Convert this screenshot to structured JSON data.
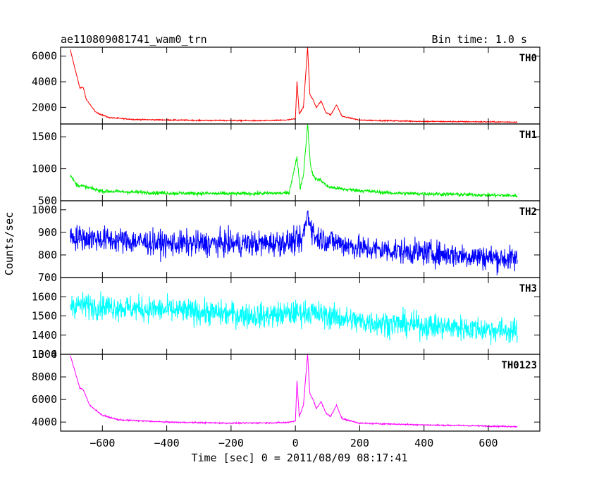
{
  "title_left": "ae110809081741_wam0_trn",
  "title_right": "Bin time: 1.0 s",
  "ylabel": "Counts/sec",
  "xlabel": "Time [sec] 0 = 2011/08/09 08:17:41",
  "chart_data": {
    "type": "line",
    "title": "ae110809081741_wam0_trn",
    "xlabel": "Time [sec] 0 = 2011/08/09 08:17:41",
    "ylabel": "Counts/sec",
    "xlim": [
      -730,
      760
    ],
    "x_ticks": [
      -600,
      -400,
      -200,
      0,
      200,
      400,
      600
    ],
    "x_range": [
      -700,
      690
    ],
    "panels": [
      {
        "name": "TH0",
        "color": "#ff0000",
        "ylim": [
          700,
          6700
        ],
        "y_ticks": [
          2000,
          4000,
          6000
        ],
        "y_tick_labels": [
          "2000",
          "4000",
          "6000"
        ],
        "noise": 45,
        "profile": [
          [
            -700,
            6500
          ],
          [
            -670,
            3500
          ],
          [
            -660,
            3600
          ],
          [
            -650,
            2600
          ],
          [
            -620,
            1600
          ],
          [
            -580,
            1200
          ],
          [
            -500,
            1050
          ],
          [
            -300,
            980
          ],
          [
            -100,
            950
          ],
          [
            -30,
            1000
          ],
          [
            0,
            1100
          ],
          [
            5,
            4000
          ],
          [
            12,
            1500
          ],
          [
            25,
            2000
          ],
          [
            38,
            6700
          ],
          [
            45,
            3000
          ],
          [
            55,
            2600
          ],
          [
            65,
            2000
          ],
          [
            80,
            2500
          ],
          [
            95,
            1600
          ],
          [
            110,
            1400
          ],
          [
            128,
            2200
          ],
          [
            145,
            1300
          ],
          [
            200,
            1000
          ],
          [
            400,
            900
          ],
          [
            690,
            850
          ]
        ]
      },
      {
        "name": "TH1",
        "color": "#00ee00",
        "ylim": [
          500,
          1700
        ],
        "y_ticks": [
          500,
          1000,
          1500
        ],
        "y_tick_labels": [
          "500",
          "1000",
          "1500"
        ],
        "noise": 30,
        "profile": [
          [
            -700,
            900
          ],
          [
            -680,
            750
          ],
          [
            -600,
            650
          ],
          [
            -400,
            620
          ],
          [
            -200,
            610
          ],
          [
            -20,
            620
          ],
          [
            5,
            1180
          ],
          [
            15,
            700
          ],
          [
            25,
            900
          ],
          [
            38,
            1700
          ],
          [
            48,
            1000
          ],
          [
            60,
            850
          ],
          [
            80,
            820
          ],
          [
            100,
            720
          ],
          [
            150,
            680
          ],
          [
            300,
            620
          ],
          [
            690,
            580
          ]
        ]
      },
      {
        "name": "TH2",
        "color": "#0000ff",
        "ylim": [
          700,
          1040
        ],
        "y_ticks": [
          700,
          800,
          900,
          1000
        ],
        "y_tick_labels": [
          "700",
          "800",
          "900",
          "1000"
        ],
        "noise": 55,
        "profile": [
          [
            -700,
            880
          ],
          [
            -400,
            850
          ],
          [
            -100,
            850
          ],
          [
            20,
            860
          ],
          [
            38,
            980
          ],
          [
            60,
            880
          ],
          [
            200,
            830
          ],
          [
            400,
            810
          ],
          [
            690,
            780
          ]
        ]
      },
      {
        "name": "TH3",
        "color": "#00ffff",
        "ylim": [
          1300,
          1700
        ],
        "y_ticks": [
          1300,
          1400,
          1500,
          1600
        ],
        "y_tick_labels": [
          "1300",
          "1400",
          "1500",
          "1600"
        ],
        "noise": 65,
        "profile": [
          [
            -700,
            1560
          ],
          [
            -400,
            1530
          ],
          [
            -100,
            1500
          ],
          [
            40,
            1520
          ],
          [
            200,
            1470
          ],
          [
            400,
            1450
          ],
          [
            690,
            1420
          ]
        ]
      },
      {
        "name": "TH0123",
        "color": "#ff00ff",
        "ylim": [
          3200,
          10000
        ],
        "y_ticks": [
          4000,
          6000,
          8000,
          10000
        ],
        "y_tick_labels": [
          "4000",
          "6000",
          "8000",
          "10^4"
        ],
        "noise": 60,
        "profile": [
          [
            -700,
            9900
          ],
          [
            -670,
            7000
          ],
          [
            -660,
            6900
          ],
          [
            -640,
            5500
          ],
          [
            -600,
            4600
          ],
          [
            -550,
            4200
          ],
          [
            -400,
            4000
          ],
          [
            -200,
            3900
          ],
          [
            -30,
            3950
          ],
          [
            0,
            4100
          ],
          [
            5,
            7600
          ],
          [
            12,
            4500
          ],
          [
            25,
            5500
          ],
          [
            38,
            10000
          ],
          [
            45,
            6500
          ],
          [
            55,
            6000
          ],
          [
            65,
            5200
          ],
          [
            80,
            5800
          ],
          [
            95,
            4800
          ],
          [
            110,
            4500
          ],
          [
            128,
            5500
          ],
          [
            145,
            4300
          ],
          [
            200,
            3900
          ],
          [
            400,
            3750
          ],
          [
            690,
            3600
          ]
        ]
      }
    ]
  }
}
